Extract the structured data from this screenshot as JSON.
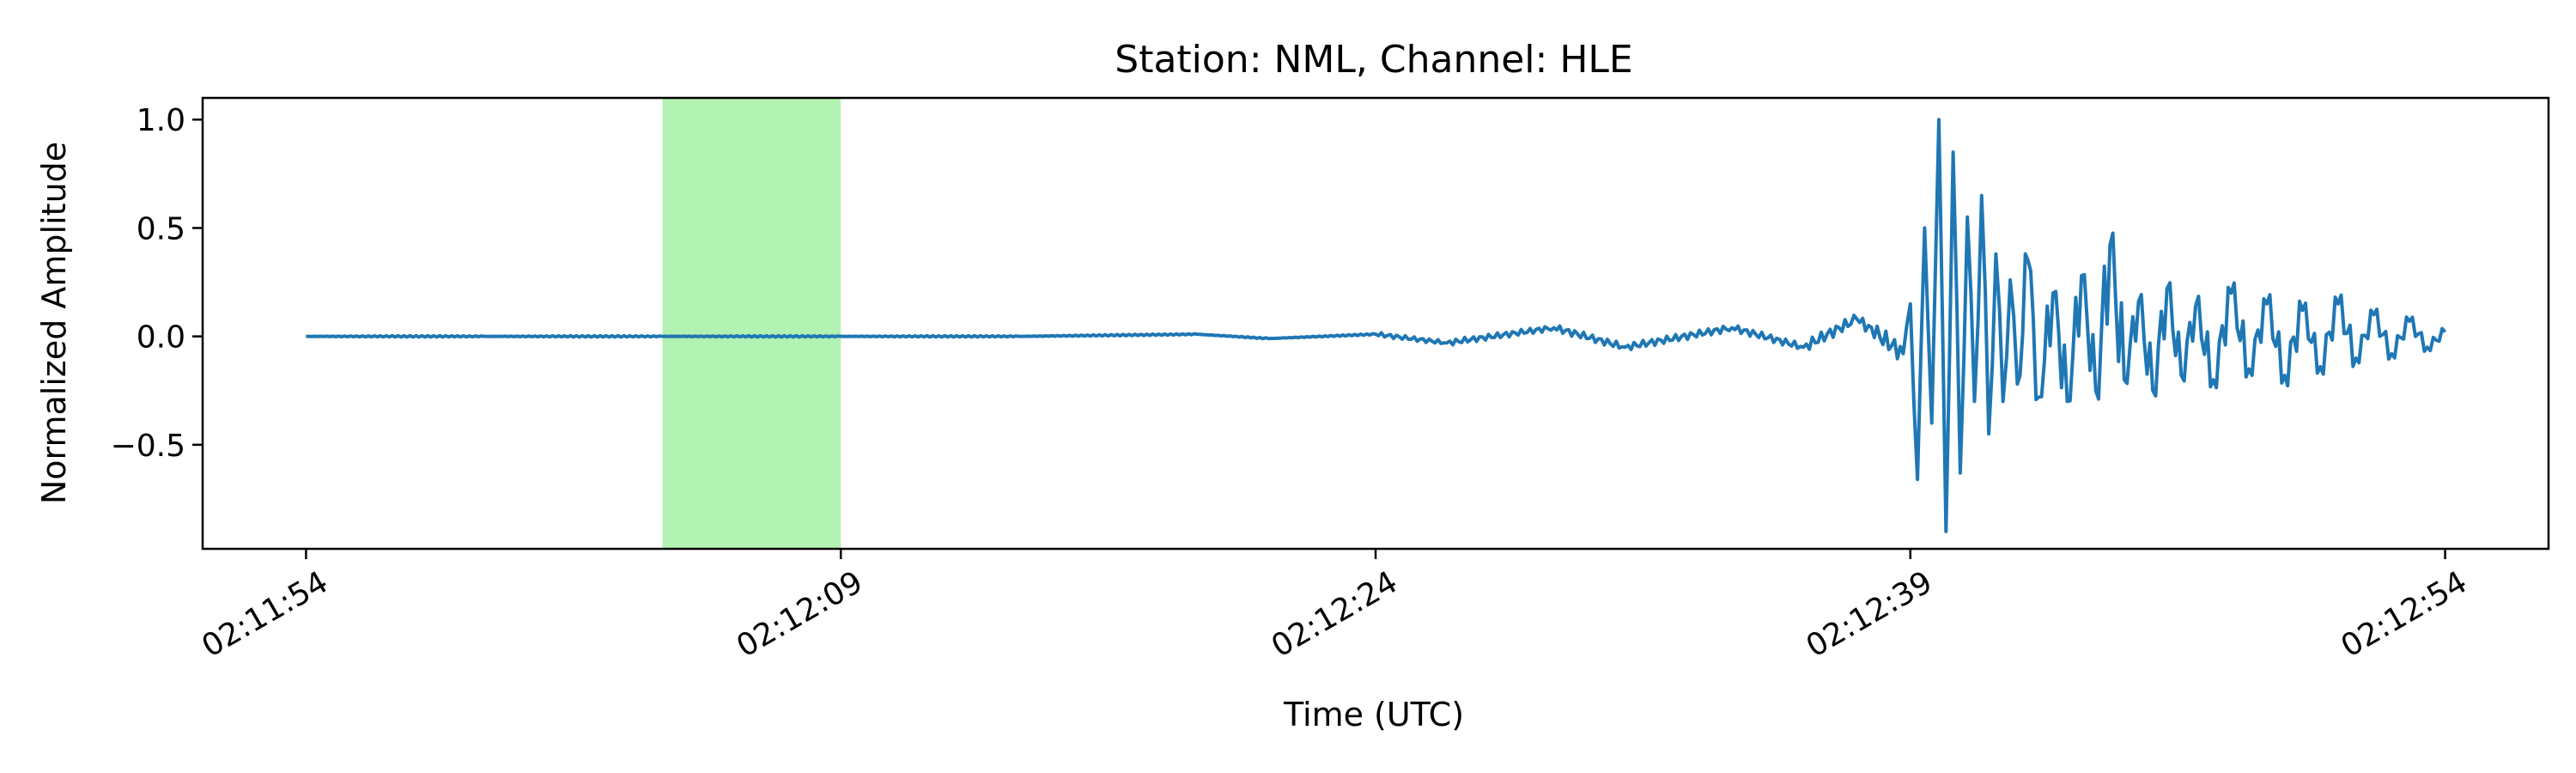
{
  "chart_data": {
    "type": "line",
    "title": "Station: NML, Channel: HLE",
    "xlabel": "Time (UTC)",
    "ylabel": "Normalized Amplitude",
    "x_ticks": [
      "02:11:54",
      "02:12:09",
      "02:12:24",
      "02:12:39",
      "02:12:54"
    ],
    "x_tick_values": [
      0,
      15,
      30,
      45,
      60
    ],
    "xlim": [
      -2.9,
      62.9
    ],
    "y_ticks": [
      "1.0",
      "0.5",
      "0.0",
      "−0.5"
    ],
    "y_tick_values": [
      1.0,
      0.5,
      0.0,
      -0.5
    ],
    "ylim": [
      -0.98,
      1.1
    ],
    "grid": false,
    "highlight_window": {
      "x": [
        10,
        15
      ],
      "color": "#b2f2b2"
    },
    "series": [
      {
        "color": "#1f77b4",
        "x": [
          0,
          5,
          10,
          15,
          20,
          25,
          27,
          30,
          32,
          35,
          37,
          40,
          42,
          43.5,
          44.8,
          45,
          45.2,
          45.4,
          45.6,
          45.8,
          46,
          46.2,
          46.4,
          46.6,
          46.8,
          47,
          47.2,
          47.4,
          47.6,
          47.8,
          48,
          48.3,
          48.6,
          49,
          49.4,
          49.8,
          50.2,
          50.6,
          51,
          51.4,
          51.8,
          52.2,
          52.6,
          53,
          53.5,
          54,
          54.5,
          55,
          55.5,
          56,
          56.5,
          57,
          57.5,
          58,
          58.5,
          59,
          59.5,
          60
        ],
        "y": [
          0.0,
          0.0,
          0.0,
          0.0,
          0.0,
          0.01,
          -0.01,
          0.01,
          -0.03,
          0.04,
          -0.05,
          0.04,
          -0.05,
          0.08,
          -0.08,
          0.15,
          -0.66,
          0.5,
          -0.4,
          1.0,
          -0.9,
          0.85,
          -0.63,
          0.55,
          -0.3,
          0.65,
          -0.45,
          0.38,
          -0.3,
          0.26,
          -0.22,
          0.35,
          -0.28,
          0.2,
          -0.3,
          0.28,
          -0.25,
          0.42,
          -0.2,
          0.16,
          -0.25,
          0.22,
          -0.18,
          0.14,
          -0.2,
          0.2,
          -0.15,
          0.15,
          -0.18,
          0.12,
          -0.14,
          0.15,
          -0.1,
          0.1,
          -0.08,
          0.07,
          -0.05,
          0.02
        ]
      }
    ]
  }
}
